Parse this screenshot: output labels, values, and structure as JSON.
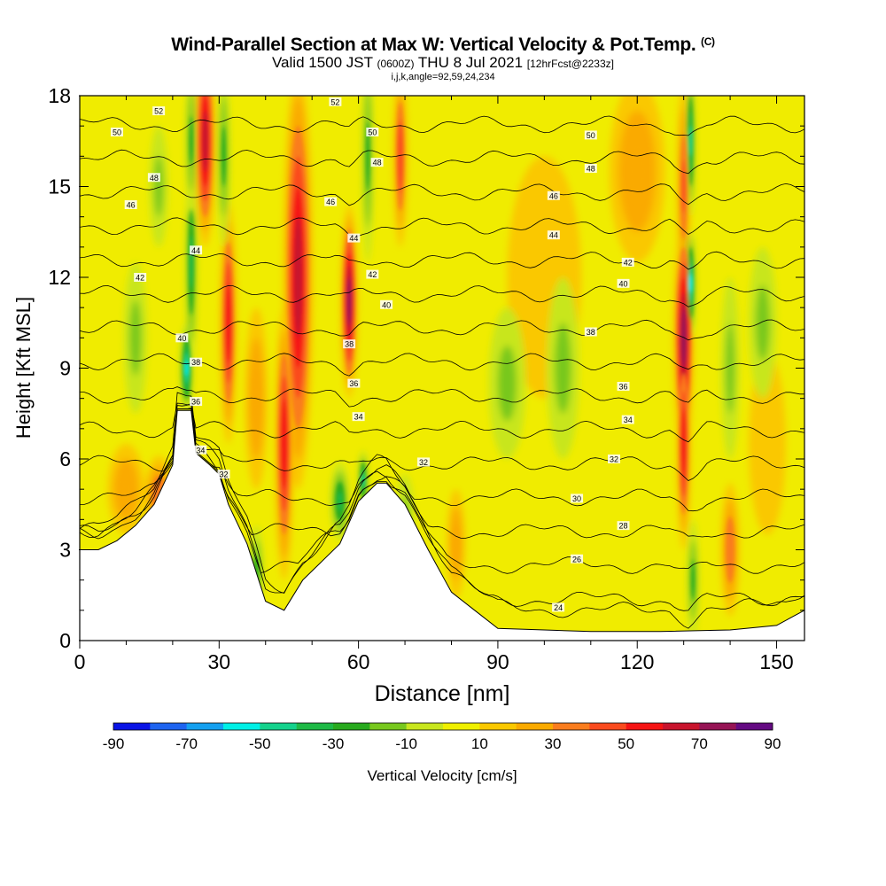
{
  "title": {
    "main": "Wind-Parallel Section at Max W: Vertical Velocity & Pot.Temp.",
    "copyright": "(C)",
    "valid_prefix": "Valid 1500 JST",
    "utc": "(0600Z)",
    "valid_date": "THU 8 Jul 2021",
    "forecast": "[12hrFcst@2233z]",
    "indices": "i,j,k,angle=92,59,24,234"
  },
  "chart_data": {
    "type": "heatmap",
    "xlabel": "Distance [nm]",
    "ylabel": "Height [Kft MSL]",
    "xlim": [
      0,
      156
    ],
    "ylim": [
      0,
      18
    ],
    "x_ticks": [
      0,
      30,
      60,
      90,
      120,
      150
    ],
    "y_ticks": [
      0,
      3,
      6,
      9,
      12,
      15,
      18
    ],
    "colorbar": {
      "label": "Vertical Velocity [cm/s]",
      "tick_labels": [
        -90,
        -70,
        -50,
        -30,
        -10,
        10,
        30,
        50,
        70,
        90
      ],
      "levels": [
        -90,
        -80,
        -70,
        -60,
        -50,
        -40,
        -30,
        -20,
        -10,
        0,
        10,
        20,
        30,
        40,
        50,
        60,
        70,
        80,
        90
      ],
      "colors": [
        "#0a14e6",
        "#1e64f0",
        "#14a0f0",
        "#00f0e6",
        "#14d28c",
        "#1eb946",
        "#28aa1e",
        "#78c81e",
        "#c8e61e",
        "#f0f000",
        "#fac800",
        "#faaa00",
        "#fa7d1e",
        "#fa4b1e",
        "#f51414",
        "#c8142d",
        "#961455",
        "#640a82"
      ]
    },
    "terrain": [
      [
        0,
        3
      ],
      [
        4,
        3
      ],
      [
        8,
        3.3
      ],
      [
        12,
        3.8
      ],
      [
        16,
        4.5
      ],
      [
        20,
        5.8
      ],
      [
        21,
        7.6
      ],
      [
        24,
        7.6
      ],
      [
        25,
        6.2
      ],
      [
        28,
        5.8
      ],
      [
        30,
        5.5
      ],
      [
        32,
        4.5
      ],
      [
        36,
        3.2
      ],
      [
        40,
        1.3
      ],
      [
        44,
        1.0
      ],
      [
        48,
        2.0
      ],
      [
        52,
        2.6
      ],
      [
        56,
        3.2
      ],
      [
        60,
        4.6
      ],
      [
        64,
        5.2
      ],
      [
        66,
        5.2
      ],
      [
        70,
        4.5
      ],
      [
        75,
        3.0
      ],
      [
        80,
        1.6
      ],
      [
        85,
        1.0
      ],
      [
        90,
        0.4
      ],
      [
        100,
        0.35
      ],
      [
        110,
        0.3
      ],
      [
        125,
        0.3
      ],
      [
        140,
        0.35
      ],
      [
        150,
        0.5
      ],
      [
        156,
        1.0
      ]
    ],
    "updrafts": [
      {
        "x": 47,
        "y": 12.0,
        "w": 3.2,
        "h": 7.0,
        "v": 65
      },
      {
        "x": 44,
        "y": 6.5,
        "w": 2.0,
        "h": 4.5,
        "v": 58
      },
      {
        "x": 58,
        "y": 11.2,
        "w": 1.8,
        "h": 3.2,
        "v": 75
      },
      {
        "x": 32,
        "y": 10.5,
        "w": 1.8,
        "h": 4.0,
        "v": 55
      },
      {
        "x": 27,
        "y": 16.5,
        "w": 2.2,
        "h": 3.5,
        "v": 62
      },
      {
        "x": 69,
        "y": 16.0,
        "w": 1.5,
        "h": 3.0,
        "v": 48
      },
      {
        "x": 130,
        "y": 10.0,
        "w": 2.2,
        "h": 4.0,
        "v": 75
      },
      {
        "x": 130,
        "y": 6.5,
        "w": 1.5,
        "h": 3.5,
        "v": 52
      },
      {
        "x": 130,
        "y": 15.0,
        "w": 1.5,
        "h": 3.5,
        "v": 40
      },
      {
        "x": 38,
        "y": 8.0,
        "w": 2.5,
        "h": 3.0,
        "v": 28
      },
      {
        "x": 17,
        "y": 4.8,
        "w": 3.0,
        "h": 1.3,
        "v": 34
      },
      {
        "x": 120,
        "y": 15.5,
        "w": 6.0,
        "h": 3.0,
        "v": 22
      },
      {
        "x": 100,
        "y": 12.0,
        "w": 8.0,
        "h": 4.0,
        "v": 16
      },
      {
        "x": 140,
        "y": 3.0,
        "w": 2.0,
        "h": 2.2,
        "v": 36
      },
      {
        "x": 10,
        "y": 5.0,
        "w": 4.0,
        "h": 1.5,
        "v": 22
      },
      {
        "x": 81,
        "y": 3.2,
        "w": 2.0,
        "h": 1.8,
        "v": 25
      },
      {
        "x": 148,
        "y": 6.5,
        "w": 4.0,
        "h": 3.0,
        "v": 18
      }
    ],
    "downdrafts": [
      {
        "x": 23,
        "y": 9.0,
        "w": 1.3,
        "h": 1.5,
        "v": -55
      },
      {
        "x": 24,
        "y": 12.5,
        "w": 1.2,
        "h": 3.5,
        "v": -32
      },
      {
        "x": 24,
        "y": 16.5,
        "w": 1.2,
        "h": 2.5,
        "v": -30
      },
      {
        "x": 31,
        "y": 16.0,
        "w": 1.3,
        "h": 3.0,
        "v": -28
      },
      {
        "x": 62,
        "y": 16.0,
        "w": 1.2,
        "h": 3.5,
        "v": -28
      },
      {
        "x": 131.5,
        "y": 11.8,
        "w": 1.0,
        "h": 1.8,
        "v": -55
      },
      {
        "x": 131.5,
        "y": 16.5,
        "w": 0.9,
        "h": 2.5,
        "v": -45
      },
      {
        "x": 132,
        "y": 2.0,
        "w": 1.2,
        "h": 2.0,
        "v": -26
      },
      {
        "x": 56,
        "y": 4.6,
        "w": 2.0,
        "h": 1.3,
        "v": -32
      },
      {
        "x": 61,
        "y": 5.3,
        "w": 1.0,
        "h": 1.0,
        "v": -45
      },
      {
        "x": 38,
        "y": 2.3,
        "w": 1.5,
        "h": 1.5,
        "v": -24
      },
      {
        "x": 92,
        "y": 8.5,
        "w": 4.0,
        "h": 2.5,
        "v": -16
      },
      {
        "x": 104,
        "y": 9.0,
        "w": 3.5,
        "h": 3.0,
        "v": -14
      },
      {
        "x": 147,
        "y": 10.5,
        "w": 3.0,
        "h": 2.5,
        "v": -16
      },
      {
        "x": 140,
        "y": 9.0,
        "w": 2.0,
        "h": 3.0,
        "v": -12
      },
      {
        "x": 12,
        "y": 10.0,
        "w": 2.5,
        "h": 2.5,
        "v": -14
      },
      {
        "x": 17,
        "y": 15.0,
        "w": 2.0,
        "h": 2.0,
        "v": -12
      },
      {
        "x": 70,
        "y": 4.0,
        "w": 2.0,
        "h": 1.5,
        "v": -20
      }
    ],
    "theta_contours": [
      22,
      24,
      26,
      28,
      30,
      32,
      34,
      36,
      38,
      40,
      42,
      44,
      46,
      48,
      50,
      52
    ],
    "contour_labels": [
      {
        "text": "52",
        "x": 17,
        "y": 17.5
      },
      {
        "text": "50",
        "x": 8,
        "y": 16.8
      },
      {
        "text": "48",
        "x": 16,
        "y": 15.3
      },
      {
        "text": "46",
        "x": 11,
        "y": 14.4
      },
      {
        "text": "44",
        "x": 25,
        "y": 12.9
      },
      {
        "text": "42",
        "x": 13,
        "y": 12.0
      },
      {
        "text": "40",
        "x": 22,
        "y": 10.0
      },
      {
        "text": "38",
        "x": 25,
        "y": 9.2
      },
      {
        "text": "36",
        "x": 25,
        "y": 7.9
      },
      {
        "text": "34",
        "x": 26,
        "y": 6.3
      },
      {
        "text": "32",
        "x": 31,
        "y": 5.5
      },
      {
        "text": "52",
        "x": 55,
        "y": 17.8
      },
      {
        "text": "50",
        "x": 63,
        "y": 16.8
      },
      {
        "text": "48",
        "x": 64,
        "y": 15.8
      },
      {
        "text": "46",
        "x": 54,
        "y": 14.5
      },
      {
        "text": "44",
        "x": 59,
        "y": 13.3
      },
      {
        "text": "42",
        "x": 63,
        "y": 12.1
      },
      {
        "text": "40",
        "x": 66,
        "y": 11.1
      },
      {
        "text": "38",
        "x": 58,
        "y": 9.8
      },
      {
        "text": "36",
        "x": 59,
        "y": 8.5
      },
      {
        "text": "34",
        "x": 60,
        "y": 7.4
      },
      {
        "text": "32",
        "x": 74,
        "y": 5.9
      },
      {
        "text": "50",
        "x": 110,
        "y": 16.7
      },
      {
        "text": "48",
        "x": 110,
        "y": 15.6
      },
      {
        "text": "46",
        "x": 102,
        "y": 14.7
      },
      {
        "text": "44",
        "x": 102,
        "y": 13.4
      },
      {
        "text": "42",
        "x": 118,
        "y": 12.5
      },
      {
        "text": "40",
        "x": 117,
        "y": 11.8
      },
      {
        "text": "38",
        "x": 110,
        "y": 10.2
      },
      {
        "text": "36",
        "x": 117,
        "y": 8.4
      },
      {
        "text": "34",
        "x": 118,
        "y": 7.3
      },
      {
        "text": "32",
        "x": 115,
        "y": 6.0
      },
      {
        "text": "30",
        "x": 107,
        "y": 4.7
      },
      {
        "text": "28",
        "x": 117,
        "y": 3.8
      },
      {
        "text": "26",
        "x": 107,
        "y": 2.7
      },
      {
        "text": "24",
        "x": 103,
        "y": 1.1
      }
    ]
  }
}
